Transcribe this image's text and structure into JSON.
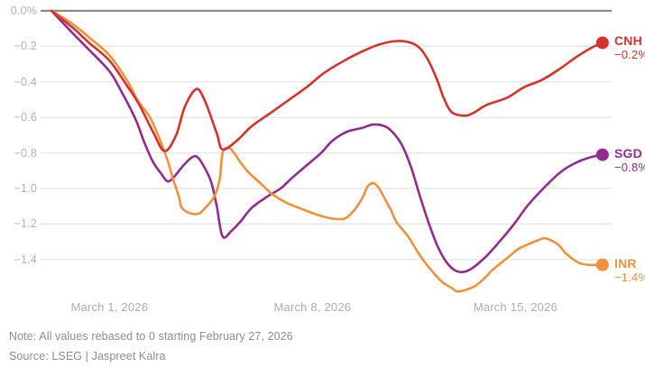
{
  "chart_data": {
    "type": "line",
    "title": "",
    "unit": "percent",
    "note": "Note: All values rebased to 0 starting February 27, 2026",
    "source": "Source: LSEG | Jaspreet Kalra",
    "grid": "horizontal",
    "legend_position": "right-end",
    "style": {
      "background": "#ffffff",
      "gridline_color": "#e4e4e4",
      "zero_line_color": "#8b8b8b",
      "axis_text_color": "#b4b1ae",
      "note_text_color": "#8f8d8b"
    },
    "x_axis": {
      "start_date": "February 27, 2026",
      "range_days": [
        0,
        19
      ],
      "ticks": [
        {
          "day": 2,
          "label": "March 1, 2026"
        },
        {
          "day": 9,
          "label": "March 8, 2026"
        },
        {
          "day": 16,
          "label": "March 15, 2026"
        }
      ]
    },
    "y_axis": {
      "range": [
        -1.6,
        0.0
      ],
      "ticks": [
        {
          "value": 0,
          "label": "0.0%"
        },
        {
          "value": -0.2,
          "label": "−0.2"
        },
        {
          "value": -0.4,
          "label": "−0.4"
        },
        {
          "value": -0.6,
          "label": "−0.6"
        },
        {
          "value": -0.8,
          "label": "−0.8"
        },
        {
          "value": -1.0,
          "label": "−1.0"
        },
        {
          "value": -1.2,
          "label": "−1.2"
        },
        {
          "value": -1.4,
          "label": "−1.4"
        }
      ]
    },
    "series": [
      {
        "name": "SGD",
        "color": "#942c90",
        "end_value_label": "−0.8%",
        "points": [
          [
            0,
            0
          ],
          [
            0.7,
            -0.12
          ],
          [
            1.3,
            -0.22
          ],
          [
            2,
            -0.34
          ],
          [
            2.4,
            -0.45
          ],
          [
            2.9,
            -0.61
          ],
          [
            3.2,
            -0.74
          ],
          [
            3.5,
            -0.85
          ],
          [
            3.8,
            -0.92
          ],
          [
            4,
            -0.96
          ],
          [
            4.2,
            -0.94
          ],
          [
            4.5,
            -0.88
          ],
          [
            4.8,
            -0.83
          ],
          [
            5,
            -0.82
          ],
          [
            5.2,
            -0.86
          ],
          [
            5.5,
            -0.96
          ],
          [
            5.7,
            -1.1
          ],
          [
            5.9,
            -1.27
          ],
          [
            6.2,
            -1.24
          ],
          [
            6.5,
            -1.19
          ],
          [
            6.9,
            -1.11
          ],
          [
            7.4,
            -1.05
          ],
          [
            7.9,
            -1.0
          ],
          [
            8.3,
            -0.94
          ],
          [
            8.8,
            -0.87
          ],
          [
            9.3,
            -0.8
          ],
          [
            9.7,
            -0.73
          ],
          [
            10.2,
            -0.68
          ],
          [
            10.7,
            -0.66
          ],
          [
            11.1,
            -0.64
          ],
          [
            11.5,
            -0.65
          ],
          [
            11.8,
            -0.69
          ],
          [
            12.1,
            -0.76
          ],
          [
            12.4,
            -0.88
          ],
          [
            12.7,
            -1.04
          ],
          [
            13,
            -1.19
          ],
          [
            13.3,
            -1.32
          ],
          [
            13.6,
            -1.41
          ],
          [
            13.9,
            -1.46
          ],
          [
            14.2,
            -1.47
          ],
          [
            14.5,
            -1.45
          ],
          [
            15,
            -1.38
          ],
          [
            15.5,
            -1.29
          ],
          [
            16,
            -1.19
          ],
          [
            16.4,
            -1.1
          ],
          [
            16.9,
            -1.01
          ],
          [
            17.4,
            -0.93
          ],
          [
            17.8,
            -0.88
          ],
          [
            18.3,
            -0.84
          ],
          [
            18.7,
            -0.82
          ],
          [
            19,
            -0.81
          ]
        ]
      },
      {
        "name": "INR",
        "color": "#f0913c",
        "end_value_label": "−1.4%",
        "points": [
          [
            0,
            0
          ],
          [
            0.7,
            -0.07
          ],
          [
            1.3,
            -0.15
          ],
          [
            2,
            -0.25
          ],
          [
            2.6,
            -0.39
          ],
          [
            3,
            -0.51
          ],
          [
            3.4,
            -0.6
          ],
          [
            3.7,
            -0.71
          ],
          [
            4,
            -0.84
          ],
          [
            4.2,
            -0.95
          ],
          [
            4.4,
            -1.05
          ],
          [
            4.5,
            -1.11
          ],
          [
            4.8,
            -1.14
          ],
          [
            5.1,
            -1.14
          ],
          [
            5.3,
            -1.11
          ],
          [
            5.6,
            -1.05
          ],
          [
            5.8,
            -0.95
          ],
          [
            5.9,
            -0.8
          ],
          [
            6.1,
            -0.77
          ],
          [
            6.3,
            -0.8
          ],
          [
            6.5,
            -0.85
          ],
          [
            6.8,
            -0.91
          ],
          [
            7.2,
            -0.97
          ],
          [
            7.6,
            -1.03
          ],
          [
            8.1,
            -1.08
          ],
          [
            8.7,
            -1.12
          ],
          [
            9.2,
            -1.15
          ],
          [
            9.7,
            -1.17
          ],
          [
            10.1,
            -1.17
          ],
          [
            10.4,
            -1.13
          ],
          [
            10.7,
            -1.06
          ],
          [
            10.9,
            -0.99
          ],
          [
            11.1,
            -0.97
          ],
          [
            11.3,
            -1.0
          ],
          [
            11.5,
            -1.06
          ],
          [
            11.7,
            -1.12
          ],
          [
            11.9,
            -1.19
          ],
          [
            12.3,
            -1.27
          ],
          [
            12.6,
            -1.35
          ],
          [
            12.9,
            -1.42
          ],
          [
            13.2,
            -1.48
          ],
          [
            13.5,
            -1.53
          ],
          [
            13.8,
            -1.56
          ],
          [
            14,
            -1.58
          ],
          [
            14.3,
            -1.57
          ],
          [
            14.6,
            -1.55
          ],
          [
            14.9,
            -1.51
          ],
          [
            15.2,
            -1.46
          ],
          [
            15.5,
            -1.42
          ],
          [
            15.8,
            -1.38
          ],
          [
            16.1,
            -1.34
          ],
          [
            16.5,
            -1.31
          ],
          [
            16.8,
            -1.29
          ],
          [
            17,
            -1.28
          ],
          [
            17.2,
            -1.29
          ],
          [
            17.5,
            -1.32
          ],
          [
            17.7,
            -1.36
          ],
          [
            18,
            -1.4
          ],
          [
            18.2,
            -1.42
          ],
          [
            18.5,
            -1.43
          ],
          [
            19,
            -1.43
          ]
        ]
      },
      {
        "name": "CNH",
        "color": "#d6332c",
        "end_value_label": "−0.2%",
        "points": [
          [
            0,
            0
          ],
          [
            0.7,
            -0.09
          ],
          [
            1.3,
            -0.18
          ],
          [
            2,
            -0.28
          ],
          [
            2.6,
            -0.42
          ],
          [
            3,
            -0.52
          ],
          [
            3.5,
            -0.68
          ],
          [
            3.9,
            -0.79
          ],
          [
            4.3,
            -0.7
          ],
          [
            4.6,
            -0.54
          ],
          [
            5,
            -0.44
          ],
          [
            5.3,
            -0.51
          ],
          [
            5.7,
            -0.69
          ],
          [
            5.9,
            -0.78
          ],
          [
            6.4,
            -0.73
          ],
          [
            6.9,
            -0.65
          ],
          [
            7.6,
            -0.57
          ],
          [
            8.2,
            -0.5
          ],
          [
            8.8,
            -0.43
          ],
          [
            9.4,
            -0.35
          ],
          [
            10.1,
            -0.28
          ],
          [
            10.7,
            -0.23
          ],
          [
            11.3,
            -0.19
          ],
          [
            11.9,
            -0.17
          ],
          [
            12.4,
            -0.18
          ],
          [
            12.7,
            -0.21
          ],
          [
            13,
            -0.28
          ],
          [
            13.3,
            -0.39
          ],
          [
            13.5,
            -0.48
          ],
          [
            13.7,
            -0.55
          ],
          [
            13.9,
            -0.58
          ],
          [
            14.3,
            -0.59
          ],
          [
            14.6,
            -0.57
          ],
          [
            15,
            -0.53
          ],
          [
            15.7,
            -0.49
          ],
          [
            16.3,
            -0.43
          ],
          [
            16.9,
            -0.39
          ],
          [
            17.5,
            -0.33
          ],
          [
            18.1,
            -0.26
          ],
          [
            18.6,
            -0.21
          ],
          [
            19,
            -0.18
          ]
        ]
      }
    ]
  }
}
